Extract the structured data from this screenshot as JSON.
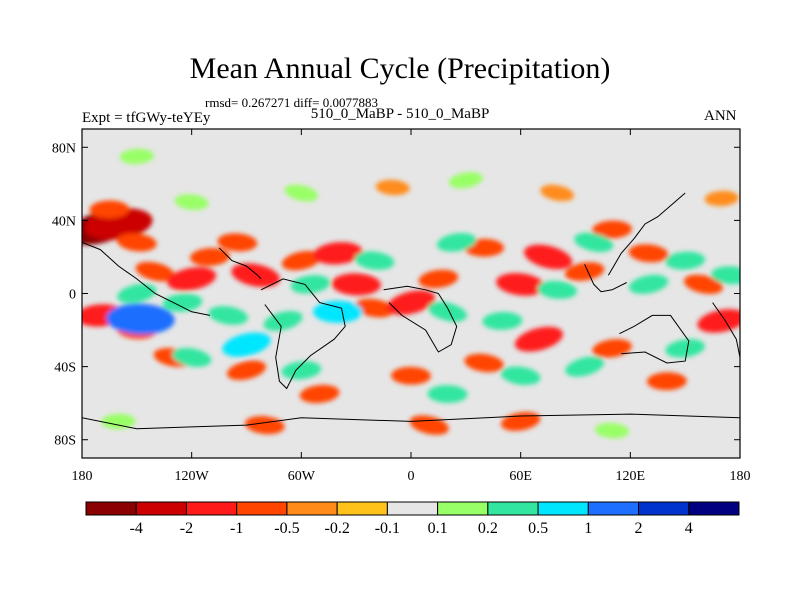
{
  "title": "Mean Annual Cycle (Precipitation)",
  "rmsd_text": "rmsd= 0.267271 diff= 0.0077883",
  "left_label": "Expt = tfGWy-teYEy",
  "center_label": "510_0_MaBP - 510_0_MaBP",
  "right_label": "ANN",
  "chart_data": {
    "type": "heatmap",
    "projection": "cylindrical-equidistant",
    "x_ticks": [
      {
        "value": -180,
        "label": "180"
      },
      {
        "value": -120,
        "label": "120W"
      },
      {
        "value": -60,
        "label": "60W"
      },
      {
        "value": 0,
        "label": "0"
      },
      {
        "value": 60,
        "label": "60E"
      },
      {
        "value": 120,
        "label": "120E"
      },
      {
        "value": 180,
        "label": "180"
      }
    ],
    "y_ticks": [
      {
        "value": 80,
        "label": "80N"
      },
      {
        "value": 40,
        "label": "40N"
      },
      {
        "value": 0,
        "label": "0"
      },
      {
        "value": -40,
        "label": "40S"
      },
      {
        "value": -80,
        "label": "80S"
      }
    ],
    "xlim": [
      -180,
      180
    ],
    "ylim": [
      -90,
      90
    ],
    "colorbar": {
      "labels": [
        "-4",
        "-2",
        "-1",
        "-0.5",
        "-0.2",
        "-0.1",
        "0.1",
        "0.2",
        "0.5",
        "1",
        "2",
        "4"
      ],
      "colors": [
        "#8b0000",
        "#cc0000",
        "#ff1a1a",
        "#ff4500",
        "#ff8c1a",
        "#ffc21a",
        "#e6e6e6",
        "#99ff66",
        "#33e6a0",
        "#00e6ff",
        "#1e6eff",
        "#0033cc",
        "#000080"
      ],
      "neutral_index": 6
    },
    "anomalies": [
      {
        "lon": -170,
        "lat": 36,
        "value": -4
      },
      {
        "lon": -160,
        "lat": 38,
        "value": -2
      },
      {
        "lon": -165,
        "lat": 46,
        "value": -0.5
      },
      {
        "lon": -150,
        "lat": 28,
        "value": -0.5
      },
      {
        "lon": -140,
        "lat": 12,
        "value": -0.5
      },
      {
        "lon": -120,
        "lat": 8,
        "value": -1
      },
      {
        "lon": -110,
        "lat": 20,
        "value": -0.5
      },
      {
        "lon": -95,
        "lat": 28,
        "value": -0.5
      },
      {
        "lon": -85,
        "lat": 10,
        "value": -1
      },
      {
        "lon": -60,
        "lat": 18,
        "value": -0.5
      },
      {
        "lon": -40,
        "lat": 22,
        "value": -1
      },
      {
        "lon": -30,
        "lat": 5,
        "value": -1
      },
      {
        "lon": -20,
        "lat": -8,
        "value": -0.5
      },
      {
        "lon": 0,
        "lat": -5,
        "value": -1
      },
      {
        "lon": 15,
        "lat": 8,
        "value": -0.5
      },
      {
        "lon": 40,
        "lat": 25,
        "value": -0.5
      },
      {
        "lon": 60,
        "lat": 5,
        "value": -1
      },
      {
        "lon": 75,
        "lat": 20,
        "value": -1
      },
      {
        "lon": 95,
        "lat": 12,
        "value": -0.5
      },
      {
        "lon": 110,
        "lat": 35,
        "value": -0.5
      },
      {
        "lon": 130,
        "lat": 22,
        "value": -0.5
      },
      {
        "lon": 160,
        "lat": 5,
        "value": -0.5
      },
      {
        "lon": 170,
        "lat": -15,
        "value": -1
      },
      {
        "lon": -170,
        "lat": -12,
        "value": -1
      },
      {
        "lon": -150,
        "lat": -20,
        "value": -0.5
      },
      {
        "lon": -130,
        "lat": -35,
        "value": -0.5
      },
      {
        "lon": -90,
        "lat": -42,
        "value": -0.5
      },
      {
        "lon": -50,
        "lat": -55,
        "value": -0.5
      },
      {
        "lon": 0,
        "lat": -45,
        "value": -0.5
      },
      {
        "lon": 40,
        "lat": -38,
        "value": -0.5
      },
      {
        "lon": 70,
        "lat": -25,
        "value": -1
      },
      {
        "lon": 110,
        "lat": -30,
        "value": -0.5
      },
      {
        "lon": 140,
        "lat": -48,
        "value": -0.5
      },
      {
        "lon": -80,
        "lat": -72,
        "value": -0.5
      },
      {
        "lon": 10,
        "lat": -72,
        "value": -0.5
      },
      {
        "lon": 60,
        "lat": -70,
        "value": -0.5
      },
      {
        "lon": 170,
        "lat": 52,
        "value": -0.2
      },
      {
        "lon": -10,
        "lat": 58,
        "value": -0.2
      },
      {
        "lon": 80,
        "lat": 55,
        "value": -0.2
      },
      {
        "lon": -150,
        "lat": 0,
        "value": 0.5
      },
      {
        "lon": -125,
        "lat": -5,
        "value": 0.5
      },
      {
        "lon": -148,
        "lat": -14,
        "value": 2
      },
      {
        "lon": -100,
        "lat": -12,
        "value": 0.5
      },
      {
        "lon": -70,
        "lat": -15,
        "value": 0.5
      },
      {
        "lon": -55,
        "lat": 5,
        "value": 0.5
      },
      {
        "lon": -40,
        "lat": -10,
        "value": 1
      },
      {
        "lon": -20,
        "lat": 18,
        "value": 0.5
      },
      {
        "lon": 20,
        "lat": -10,
        "value": 0.5
      },
      {
        "lon": 25,
        "lat": 28,
        "value": 0.5
      },
      {
        "lon": 50,
        "lat": -15,
        "value": 0.5
      },
      {
        "lon": 80,
        "lat": 2,
        "value": 0.5
      },
      {
        "lon": 100,
        "lat": 28,
        "value": 0.5
      },
      {
        "lon": 130,
        "lat": 5,
        "value": 0.5
      },
      {
        "lon": 150,
        "lat": 18,
        "value": 0.5
      },
      {
        "lon": 175,
        "lat": 10,
        "value": 0.5
      },
      {
        "lon": -120,
        "lat": -35,
        "value": 0.5
      },
      {
        "lon": -90,
        "lat": -28,
        "value": 1
      },
      {
        "lon": -60,
        "lat": -42,
        "value": 0.5
      },
      {
        "lon": 20,
        "lat": -55,
        "value": 0.5
      },
      {
        "lon": 60,
        "lat": -45,
        "value": 0.5
      },
      {
        "lon": 95,
        "lat": -40,
        "value": 0.5
      },
      {
        "lon": 150,
        "lat": -30,
        "value": 0.5
      },
      {
        "lon": -160,
        "lat": -70,
        "value": 0.2
      },
      {
        "lon": -120,
        "lat": 50,
        "value": 0.2
      },
      {
        "lon": -60,
        "lat": 55,
        "value": 0.2
      },
      {
        "lon": 30,
        "lat": 62,
        "value": 0.2
      },
      {
        "lon": -150,
        "lat": 75,
        "value": 0.2
      },
      {
        "lon": 110,
        "lat": -75,
        "value": 0.2
      }
    ],
    "coastline": [
      {
        "name": "africa",
        "points": [
          [
            -15,
            2
          ],
          [
            -2,
            4
          ],
          [
            8,
            2
          ],
          [
            15,
            0
          ],
          [
            20,
            -8
          ],
          [
            25,
            -18
          ],
          [
            22,
            -28
          ],
          [
            15,
            -32
          ],
          [
            8,
            -20
          ],
          [
            -5,
            -12
          ],
          [
            -12,
            -5
          ]
        ]
      },
      {
        "name": "south-america",
        "points": [
          [
            -82,
            2
          ],
          [
            -70,
            8
          ],
          [
            -58,
            5
          ],
          [
            -50,
            -5
          ],
          [
            -38,
            -8
          ],
          [
            -36,
            -18
          ],
          [
            -42,
            -25
          ],
          [
            -55,
            -34
          ],
          [
            -63,
            -42
          ],
          [
            -68,
            -52
          ],
          [
            -72,
            -48
          ],
          [
            -74,
            -35
          ],
          [
            -71,
            -18
          ],
          [
            -80,
            -6
          ]
        ]
      },
      {
        "name": "central-america",
        "points": [
          [
            -105,
            25
          ],
          [
            -98,
            18
          ],
          [
            -90,
            15
          ],
          [
            -84,
            10
          ],
          [
            -82,
            8
          ]
        ]
      },
      {
        "name": "north-america-west",
        "points": [
          [
            -180,
            28
          ],
          [
            -170,
            24
          ],
          [
            -160,
            15
          ],
          [
            -150,
            8
          ],
          [
            -140,
            0
          ],
          [
            -130,
            -5
          ],
          [
            -120,
            -10
          ],
          [
            -110,
            -12
          ]
        ]
      },
      {
        "name": "australia",
        "points": [
          [
            114,
            -22
          ],
          [
            122,
            -18
          ],
          [
            132,
            -12
          ],
          [
            142,
            -12
          ],
          [
            152,
            -26
          ],
          [
            150,
            -37
          ],
          [
            140,
            -38
          ],
          [
            128,
            -32
          ],
          [
            115,
            -33
          ]
        ]
      },
      {
        "name": "antarctica",
        "points": [
          [
            -180,
            -68
          ],
          [
            -150,
            -74
          ],
          [
            -120,
            -73
          ],
          [
            -90,
            -72
          ],
          [
            -60,
            -68
          ],
          [
            0,
            -70
          ],
          [
            60,
            -67
          ],
          [
            120,
            -66
          ],
          [
            180,
            -68
          ]
        ]
      },
      {
        "name": "east-asia-coast",
        "points": [
          [
            108,
            10
          ],
          [
            115,
            22
          ],
          [
            122,
            30
          ],
          [
            128,
            38
          ],
          [
            135,
            42
          ],
          [
            142,
            48
          ],
          [
            150,
            55
          ]
        ]
      },
      {
        "name": "se-asia",
        "points": [
          [
            95,
            16
          ],
          [
            100,
            5
          ],
          [
            104,
            1
          ],
          [
            110,
            2
          ],
          [
            118,
            6
          ]
        ]
      },
      {
        "name": "pacific-east",
        "points": [
          [
            165,
            -5
          ],
          [
            172,
            -15
          ],
          [
            178,
            -25
          ],
          [
            180,
            -35
          ]
        ]
      }
    ]
  }
}
